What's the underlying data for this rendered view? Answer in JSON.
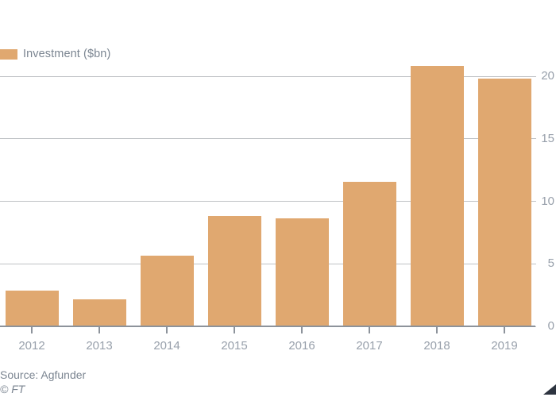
{
  "legend": {
    "label": "Investment ($bn)"
  },
  "footer": {
    "source": "Source: Agfunder",
    "copyright": "© FT"
  },
  "chart_data": {
    "type": "bar",
    "title": "",
    "series_name": "Investment ($bn)",
    "categories": [
      "2012",
      "2013",
      "2014",
      "2015",
      "2016",
      "2017",
      "2018",
      "2019"
    ],
    "values": [
      2.8,
      2.1,
      5.6,
      8.8,
      8.6,
      11.5,
      20.8,
      19.8
    ],
    "xlabel": "",
    "ylabel": "",
    "ylim": [
      0,
      20
    ],
    "yticks": [
      0,
      5,
      10,
      15,
      20
    ],
    "yaxis_side": "right",
    "grid": true,
    "legend_position": "top-left"
  },
  "colors": {
    "bar": "#e0a870",
    "gridline": "#bfc2c5",
    "axis": "#8d939b",
    "tick_label": "#98a0ab",
    "text": "#7b8591",
    "ft_triangle": "#2d3440",
    "background": "#ffffff"
  }
}
